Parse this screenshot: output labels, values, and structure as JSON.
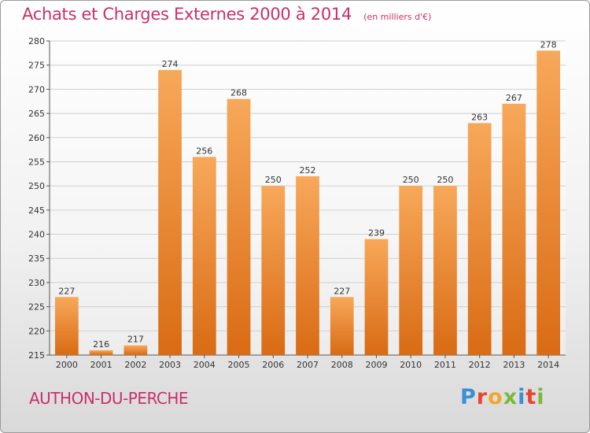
{
  "title": "Achats et Charges Externes 2000 à 2014",
  "unit": "(en milliers d'€)",
  "commune": "AUTHON-DU-PERCHE",
  "logo": {
    "letters": [
      "P",
      "r",
      "o",
      "x",
      "i",
      "t",
      "i"
    ],
    "colors": [
      "#3a8fd6",
      "#e8452e",
      "#f2a72c",
      "#7bb93a",
      "#3a8fd6",
      "#e8452e",
      "#7bb93a"
    ]
  },
  "colors": {
    "bar_light": "#f7a85a",
    "bar_dark": "#d96b14",
    "title": "#c8306a",
    "grid": "#cfcfcf"
  },
  "chart_data": {
    "type": "bar",
    "title": "Achats et Charges Externes 2000 à 2014",
    "subtitle": "(en milliers d'€)",
    "xlabel": "",
    "ylabel": "",
    "categories": [
      "2000",
      "2001",
      "2002",
      "2003",
      "2004",
      "2005",
      "2006",
      "2007",
      "2008",
      "2009",
      "2010",
      "2011",
      "2012",
      "2013",
      "2014"
    ],
    "values": [
      227,
      216,
      217,
      274,
      256,
      268,
      250,
      252,
      227,
      239,
      250,
      250,
      263,
      267,
      278
    ],
    "ylim": [
      215,
      280
    ],
    "yticks": [
      215,
      220,
      225,
      230,
      235,
      240,
      245,
      250,
      255,
      260,
      265,
      270,
      275,
      280
    ],
    "grid": true,
    "legend": "none"
  }
}
